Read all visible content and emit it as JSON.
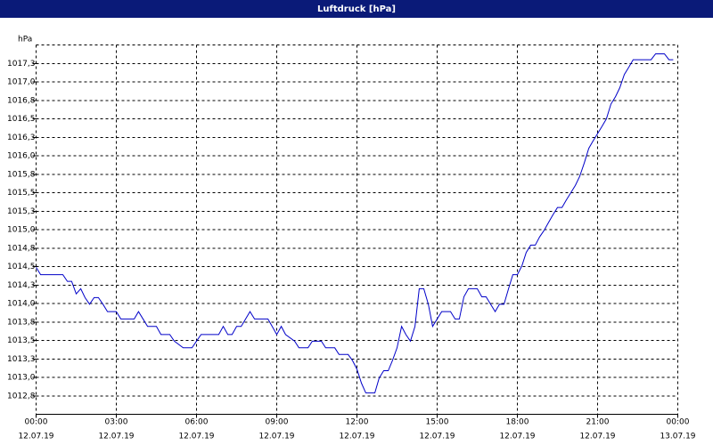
{
  "chart_data": {
    "type": "line",
    "title": "Luftdruck [hPa]",
    "y_label": "hPa",
    "xlim": [
      0,
      24
    ],
    "ylim": [
      1012.5,
      1017.5
    ],
    "xticks": [
      {
        "value": 0,
        "label": "00:00"
      },
      {
        "value": 3,
        "label": "03:00"
      },
      {
        "value": 6,
        "label": "06:00"
      },
      {
        "value": 9,
        "label": "09:00"
      },
      {
        "value": 12,
        "label": "12:00"
      },
      {
        "value": 15,
        "label": "15:00"
      },
      {
        "value": 18,
        "label": "18:00"
      },
      {
        "value": 21,
        "label": "21:00"
      },
      {
        "value": 24,
        "label": "00:00"
      }
    ],
    "xtick_dates": [
      "12.07.19",
      "12.07.19",
      "12.07.19",
      "12.07.19",
      "12.07.19",
      "12.07.19",
      "12.07.19",
      "12.07.19",
      "13.07.19"
    ],
    "yticks": [
      {
        "value": 1012.75,
        "label": "1012,8"
      },
      {
        "value": 1013.0,
        "label": "1013,0"
      },
      {
        "value": 1013.25,
        "label": "1013,3"
      },
      {
        "value": 1013.5,
        "label": "1013,5"
      },
      {
        "value": 1013.75,
        "label": "1013,8"
      },
      {
        "value": 1014.0,
        "label": "1014,0"
      },
      {
        "value": 1014.25,
        "label": "1014,3"
      },
      {
        "value": 1014.5,
        "label": "1014,5"
      },
      {
        "value": 1014.75,
        "label": "1014,8"
      },
      {
        "value": 1015.0,
        "label": "1015,0"
      },
      {
        "value": 1015.25,
        "label": "1015,3"
      },
      {
        "value": 1015.5,
        "label": "1015,5"
      },
      {
        "value": 1015.75,
        "label": "1015,8"
      },
      {
        "value": 1016.0,
        "label": "1016,0"
      },
      {
        "value": 1016.25,
        "label": "1016,3"
      },
      {
        "value": 1016.5,
        "label": "1016,5"
      },
      {
        "value": 1016.75,
        "label": "1016,8"
      },
      {
        "value": 1017.0,
        "label": "1017,0"
      },
      {
        "value": 1017.25,
        "label": "1017,3"
      }
    ],
    "grid": true,
    "series": [
      {
        "color": "#0000c8",
        "x": [
          0,
          0.17,
          1.0,
          1.17,
          1.33,
          1.5,
          1.67,
          1.83,
          2.0,
          2.17,
          2.33,
          2.5,
          2.67,
          3.0,
          3.17,
          3.67,
          3.83,
          4.0,
          4.17,
          4.5,
          4.67,
          5.0,
          5.17,
          5.5,
          5.83,
          6.0,
          6.17,
          6.83,
          7.0,
          7.17,
          7.33,
          7.5,
          7.67,
          8.0,
          8.17,
          8.67,
          8.83,
          9.0,
          9.17,
          9.33,
          9.67,
          9.83,
          10.17,
          10.33,
          10.67,
          10.83,
          11.17,
          11.33,
          11.67,
          11.83,
          12.0,
          12.17,
          12.33,
          12.67,
          12.83,
          13.0,
          13.17,
          13.33,
          13.5,
          13.67,
          13.83,
          14.0,
          14.17,
          14.33,
          14.5,
          14.67,
          14.83,
          15.0,
          15.17,
          15.5,
          15.67,
          15.83,
          16.0,
          16.17,
          16.5,
          16.67,
          16.83,
          17.0,
          17.17,
          17.33,
          17.5,
          17.67,
          17.83,
          18.0,
          18.17,
          18.33,
          18.5,
          18.67,
          18.83,
          19.0,
          19.17,
          19.33,
          19.5,
          19.67,
          19.83,
          20.0,
          20.17,
          20.33,
          20.5,
          20.67,
          20.83,
          21.0,
          21.17,
          21.33,
          21.5,
          21.67,
          21.83,
          22.0,
          22.17,
          22.33,
          23.0,
          23.17,
          23.5,
          23.67,
          23.83
        ],
        "values": [
          1014.49,
          1014.39,
          1014.39,
          1014.3,
          1014.3,
          1014.13,
          1014.2,
          1014.08,
          1013.99,
          1014.08,
          1014.08,
          1013.99,
          1013.89,
          1013.89,
          1013.79,
          1013.79,
          1013.89,
          1013.79,
          1013.69,
          1013.69,
          1013.58,
          1013.58,
          1013.49,
          1013.4,
          1013.4,
          1013.49,
          1013.58,
          1013.58,
          1013.69,
          1013.58,
          1013.58,
          1013.69,
          1013.69,
          1013.89,
          1013.79,
          1013.79,
          1013.69,
          1013.58,
          1013.69,
          1013.58,
          1013.49,
          1013.4,
          1013.4,
          1013.49,
          1013.49,
          1013.4,
          1013.4,
          1013.31,
          1013.31,
          1013.23,
          1013.11,
          1012.92,
          1012.79,
          1012.79,
          1012.99,
          1013.09,
          1013.09,
          1013.23,
          1013.4,
          1013.69,
          1013.58,
          1013.49,
          1013.69,
          1014.2,
          1014.2,
          1013.99,
          1013.69,
          1013.79,
          1013.89,
          1013.89,
          1013.79,
          1013.79,
          1014.09,
          1014.2,
          1014.2,
          1014.09,
          1014.09,
          1013.99,
          1013.89,
          1013.99,
          1013.99,
          1014.2,
          1014.39,
          1014.39,
          1014.51,
          1014.69,
          1014.79,
          1014.79,
          1014.9,
          1014.99,
          1015.1,
          1015.2,
          1015.3,
          1015.3,
          1015.4,
          1015.5,
          1015.6,
          1015.72,
          1015.9,
          1016.1,
          1016.2,
          1016.3,
          1016.4,
          1016.5,
          1016.7,
          1016.8,
          1016.92,
          1017.1,
          1017.2,
          1017.3,
          1017.3,
          1017.38,
          1017.38,
          1017.3,
          1017.3
        ]
      }
    ]
  }
}
